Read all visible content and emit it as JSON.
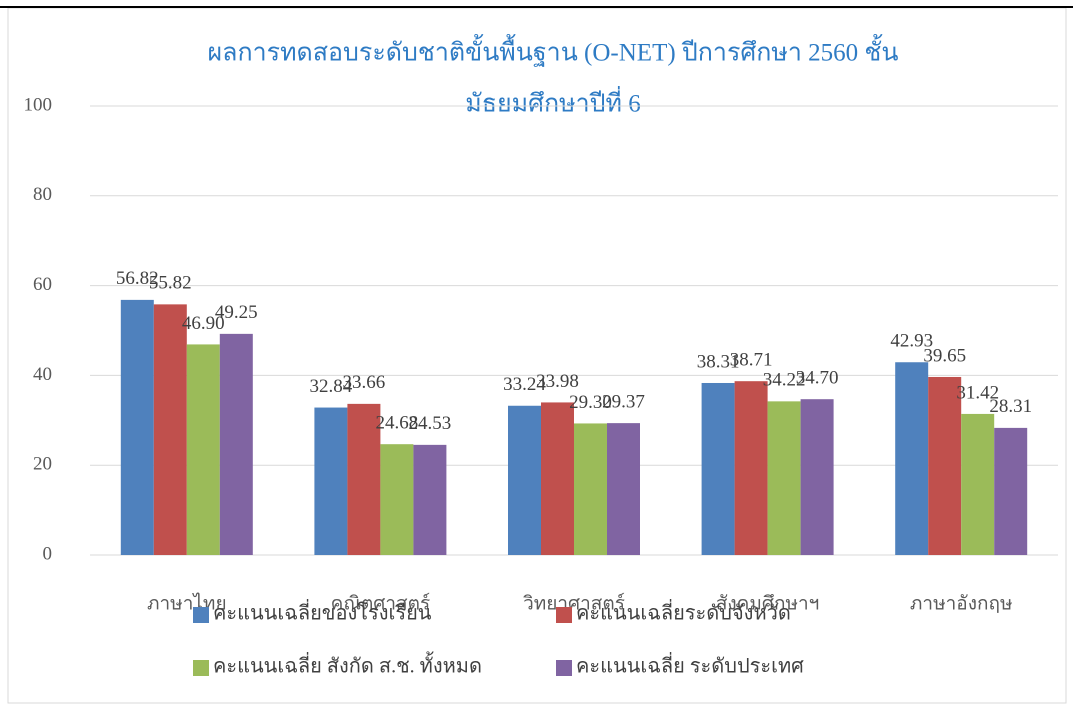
{
  "chart_data": {
    "type": "bar",
    "title": [
      "ผลการทดสอบระดับชาติขั้นพื้นฐาน (O-NET) ปีการศึกษา 2560  ชั้น",
      "มัธยมศึกษาปีที่ 6"
    ],
    "categories": [
      "ภาษาไทย",
      "คณิตศาสตร์",
      "วิทยาศาสตร์",
      "สังคมศึกษาฯ",
      "ภาษาอังกฤษ"
    ],
    "series": [
      {
        "name": "คะแนนเฉลี่ยของโรงเรียน",
        "color": "#4f81bd",
        "values": [
          56.82,
          32.84,
          33.24,
          38.31,
          42.93
        ],
        "value_labels": [
          "56.82",
          "32.84",
          "33.24",
          "38.31",
          "42.93"
        ]
      },
      {
        "name": "คะแนนเฉลี่ยระดับจังหวัด",
        "color": "#c0504d",
        "values": [
          55.82,
          33.66,
          33.98,
          38.71,
          39.65
        ],
        "value_labels": [
          "55.82",
          "33.66",
          "33.98",
          "38.71",
          "39.65"
        ]
      },
      {
        "name": "คะแนนเฉลี่ย สังกัด ส.ช. ทั้งหมด",
        "color": "#9bbb59",
        "values": [
          46.9,
          24.68,
          29.3,
          34.22,
          31.42
        ],
        "value_labels": [
          "46.90",
          "24.68",
          "29.30",
          "34.22",
          "31.42"
        ]
      },
      {
        "name": "คะแนนเฉลี่ย ระดับประเทศ",
        "color": "#8064a2",
        "values": [
          49.25,
          24.53,
          29.37,
          34.7,
          28.31
        ],
        "value_labels": [
          "49.25",
          "24.53",
          "29.37",
          "34.70",
          "28.31"
        ]
      }
    ],
    "ylim": [
      0,
      100
    ],
    "yticks": [
      0,
      20,
      40,
      60,
      80,
      100
    ],
    "grid": true
  }
}
